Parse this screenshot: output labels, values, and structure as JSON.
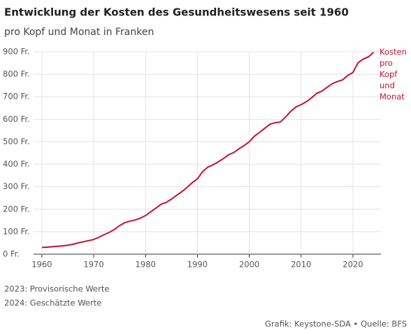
{
  "chart_data": {
    "type": "line",
    "title": "Entwicklung der Kosten des Gesundheitswesens seit 1960",
    "subtitle": "pro Kopf und Monat in Franken",
    "x": [
      1960,
      1961,
      1962,
      1963,
      1964,
      1965,
      1966,
      1967,
      1968,
      1969,
      1970,
      1971,
      1972,
      1973,
      1974,
      1975,
      1976,
      1977,
      1978,
      1979,
      1980,
      1981,
      1982,
      1983,
      1984,
      1985,
      1986,
      1987,
      1988,
      1989,
      1990,
      1991,
      1992,
      1993,
      1994,
      1995,
      1996,
      1997,
      1998,
      1999,
      2000,
      2001,
      2002,
      2003,
      2004,
      2005,
      2006,
      2007,
      2008,
      2009,
      2010,
      2011,
      2012,
      2013,
      2014,
      2015,
      2016,
      2017,
      2018,
      2019,
      2020,
      2021,
      2022,
      2023,
      2024
    ],
    "series": [
      {
        "name": "Kosten pro Kopf und Monat",
        "color": "#c8102e",
        "values": [
          30,
          31,
          33,
          35,
          37,
          40,
          44,
          50,
          55,
          60,
          65,
          75,
          87,
          97,
          110,
          127,
          140,
          147,
          152,
          160,
          172,
          188,
          205,
          222,
          230,
          245,
          262,
          278,
          297,
          318,
          335,
          367,
          387,
          397,
          410,
          425,
          442,
          452,
          468,
          483,
          500,
          525,
          542,
          560,
          578,
          585,
          588,
          610,
          635,
          655,
          665,
          678,
          695,
          715,
          725,
          742,
          758,
          768,
          775,
          795,
          808,
          852,
          868,
          878,
          898
        ]
      }
    ],
    "xlim": [
      1958.4,
      2025.4
    ],
    "xticks": [
      1960,
      1970,
      1980,
      1990,
      2000,
      2010,
      2020
    ],
    "ylim": [
      0,
      900
    ],
    "yticks": [
      {
        "value": 0,
        "label": "0 Fr."
      },
      {
        "value": 100,
        "label": "100 Fr."
      },
      {
        "value": 200,
        "label": "200 Fr."
      },
      {
        "value": 300,
        "label": "300 Fr."
      },
      {
        "value": 400,
        "label": "400 Fr."
      },
      {
        "value": 500,
        "label": "500 Fr."
      },
      {
        "value": 600,
        "label": "600 Fr."
      },
      {
        "value": 700,
        "label": "700 Fr."
      },
      {
        "value": 800,
        "label": "800 Fr."
      },
      {
        "value": 900,
        "label": "900 Fr."
      }
    ],
    "grid": true,
    "notes": [
      "2023: Provisorische Werte",
      "2024: Geschätzte Werte"
    ],
    "source": "Grafik: Keystone-SDA • Quelle: BFS"
  }
}
